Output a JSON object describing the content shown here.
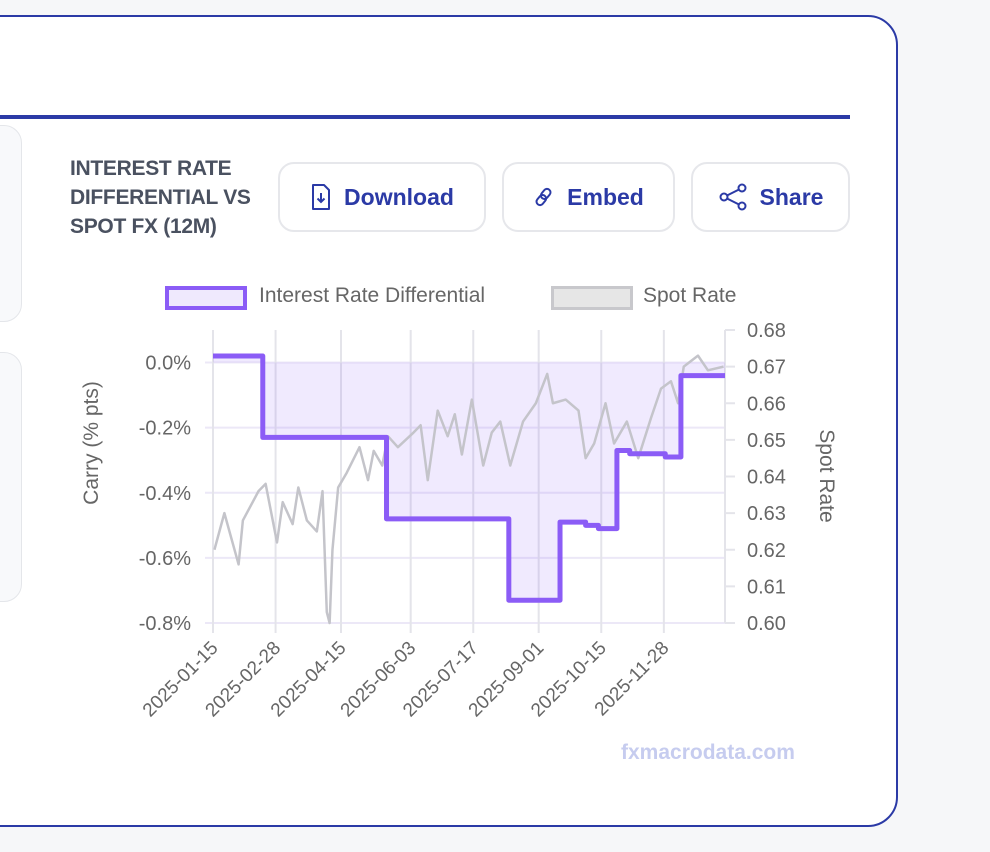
{
  "title": "INTEREST RATE DIFFERENTIAL VS SPOT FX (12M)",
  "buttons": {
    "download": "Download",
    "embed": "Embed",
    "share": "Share"
  },
  "watermark": "fxmacrodata.com",
  "colors": {
    "accent": "#2b3aa6",
    "carry": "#8b5cf6",
    "carry_fill": "#efe9fd",
    "spot": "#c4c4ca"
  },
  "chart_data": {
    "type": "line",
    "title": "INTEREST RATE DIFFERENTIAL VS SPOT FX (12M)",
    "x_unit": "days since 2025-01-15",
    "x_range": [
      0,
      360
    ],
    "x_ticks": [
      {
        "day": 0,
        "label": "2025-01-15"
      },
      {
        "day": 44,
        "label": "2025-02-28"
      },
      {
        "day": 90,
        "label": "2025-04-15"
      },
      {
        "day": 139,
        "label": "2025-06-03"
      },
      {
        "day": 183,
        "label": "2025-07-17"
      },
      {
        "day": 229,
        "label": "2025-09-01"
      },
      {
        "day": 273,
        "label": "2025-10-15"
      },
      {
        "day": 317,
        "label": "2025-11-28"
      }
    ],
    "ylabel": "Carry (% pts)",
    "ylim": [
      -0.8,
      0.1
    ],
    "y_ticks": [
      {
        "v": 0,
        "label": "0.0%"
      },
      {
        "v": -0.2,
        "label": "-0.2%"
      },
      {
        "v": -0.4,
        "label": "-0.4%"
      },
      {
        "v": -0.6,
        "label": "-0.6%"
      },
      {
        "v": -0.8,
        "label": "-0.8%"
      }
    ],
    "y2label": "Spot Rate",
    "y2lim": [
      0.6,
      0.68
    ],
    "y2_ticks": [
      {
        "v": 0.68,
        "label": "0.68"
      },
      {
        "v": 0.67,
        "label": "0.67"
      },
      {
        "v": 0.66,
        "label": "0.66"
      },
      {
        "v": 0.65,
        "label": "0.65"
      },
      {
        "v": 0.64,
        "label": "0.64"
      },
      {
        "v": 0.63,
        "label": "0.63"
      },
      {
        "v": 0.62,
        "label": "0.62"
      },
      {
        "v": 0.61,
        "label": "0.61"
      },
      {
        "v": 0.6,
        "label": "0.60"
      }
    ],
    "legend_position": "top",
    "series": [
      {
        "name": "Interest Rate Differential",
        "axis": "left",
        "step": true,
        "fill": true,
        "points": [
          [
            0,
            0.02
          ],
          [
            35,
            -0.23
          ],
          [
            122,
            -0.48
          ],
          [
            208,
            -0.73
          ],
          [
            244,
            -0.49
          ],
          [
            262,
            -0.5
          ],
          [
            271,
            -0.51
          ],
          [
            284,
            -0.27
          ],
          [
            293,
            -0.28
          ],
          [
            318,
            -0.29
          ],
          [
            329,
            -0.04
          ],
          [
            360,
            -0.04
          ]
        ]
      },
      {
        "name": "Spot Rate",
        "axis": "right",
        "step": false,
        "fill": false,
        "points": [
          [
            1,
            0.62
          ],
          [
            8,
            0.63
          ],
          [
            18,
            0.616
          ],
          [
            21,
            0.628
          ],
          [
            32,
            0.636
          ],
          [
            37,
            0.638
          ],
          [
            45,
            0.622
          ],
          [
            49,
            0.633
          ],
          [
            56,
            0.627
          ],
          [
            60,
            0.637
          ],
          [
            66,
            0.628
          ],
          [
            73,
            0.625
          ],
          [
            77,
            0.636
          ],
          [
            80,
            0.603
          ],
          [
            82,
            0.6
          ],
          [
            84,
            0.62
          ],
          [
            88,
            0.637
          ],
          [
            94,
            0.641
          ],
          [
            103,
            0.648
          ],
          [
            109,
            0.639
          ],
          [
            113,
            0.647
          ],
          [
            119,
            0.643
          ],
          [
            123,
            0.651
          ],
          [
            130,
            0.648
          ],
          [
            141,
            0.652
          ],
          [
            146,
            0.654
          ],
          [
            151,
            0.639
          ],
          [
            158,
            0.658
          ],
          [
            165,
            0.651
          ],
          [
            170,
            0.657
          ],
          [
            175,
            0.646
          ],
          [
            182,
            0.661
          ],
          [
            190,
            0.643
          ],
          [
            196,
            0.652
          ],
          [
            202,
            0.655
          ],
          [
            209,
            0.643
          ],
          [
            218,
            0.655
          ],
          [
            227,
            0.66
          ],
          [
            235,
            0.668
          ],
          [
            239,
            0.66
          ],
          [
            248,
            0.661
          ],
          [
            257,
            0.658
          ],
          [
            262,
            0.645
          ],
          [
            268,
            0.649
          ],
          [
            276,
            0.66
          ],
          [
            282,
            0.649
          ],
          [
            291,
            0.655
          ],
          [
            299,
            0.645
          ],
          [
            308,
            0.656
          ],
          [
            315,
            0.664
          ],
          [
            322,
            0.666
          ],
          [
            327,
            0.66
          ],
          [
            331,
            0.67
          ],
          [
            341,
            0.673
          ],
          [
            348,
            0.669
          ],
          [
            359,
            0.67
          ]
        ]
      }
    ]
  }
}
